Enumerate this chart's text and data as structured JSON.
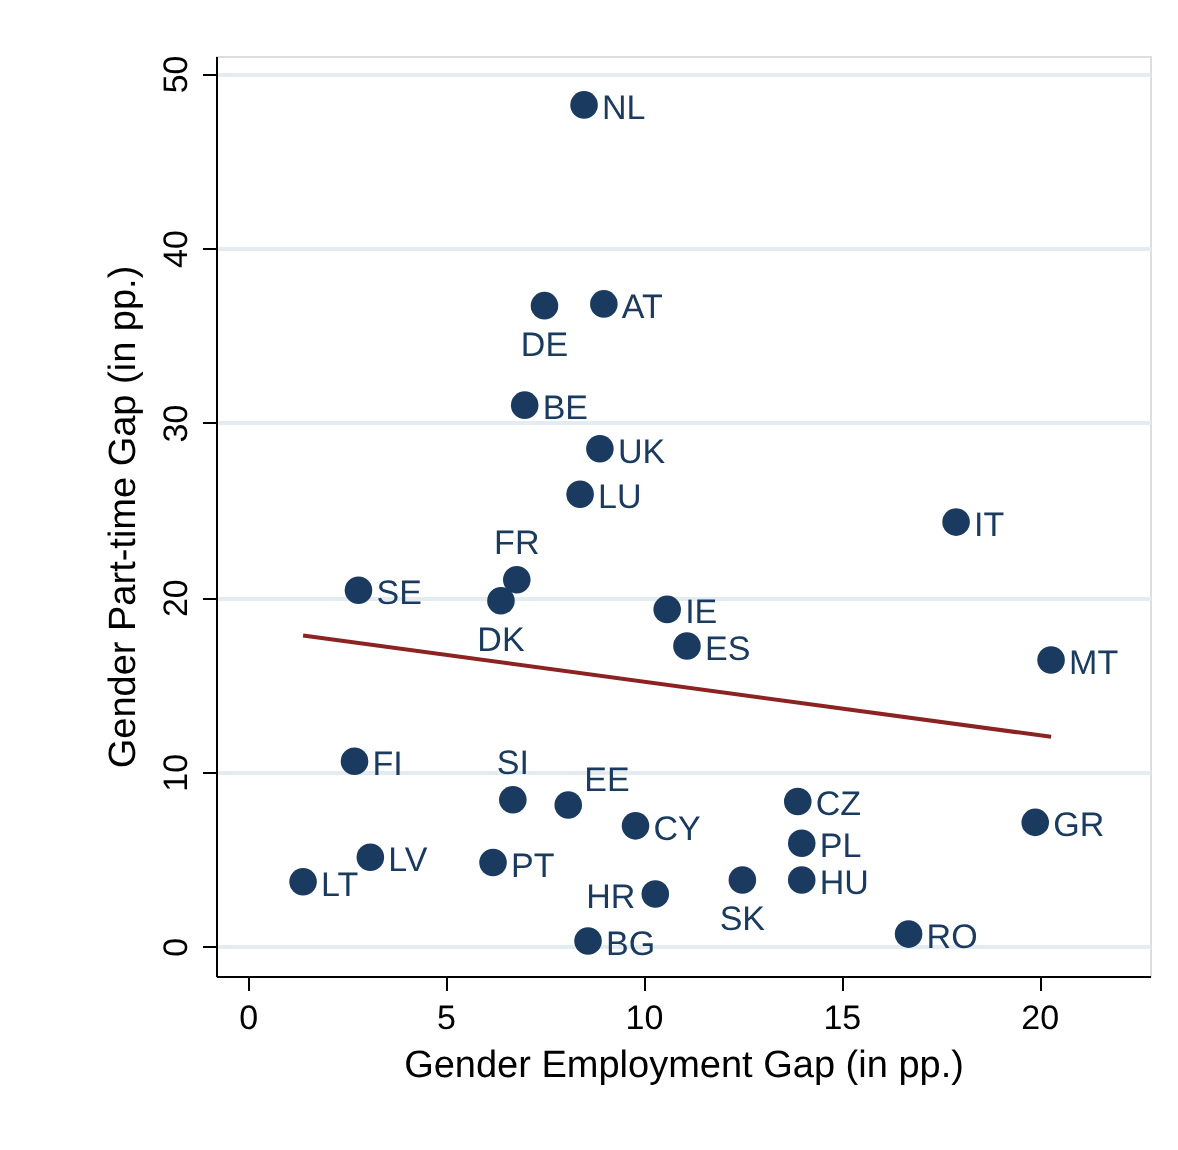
{
  "chart_data": {
    "type": "scatter",
    "xlabel": "Gender Employment Gap (in pp.)",
    "ylabel": "Gender Part-time Gap (in pp.)",
    "xlim": [
      -0.8,
      22.8
    ],
    "xticks": [
      0,
      5,
      10,
      15,
      20
    ],
    "ylim": [
      -1.7,
      51
    ],
    "yticks": [
      0,
      10,
      20,
      30,
      40,
      50
    ],
    "grid": "y",
    "series": [
      {
        "marker": "circle",
        "color": "#1a3a60",
        "x": [
          8.5,
          7.5,
          9.0,
          7.0,
          8.9,
          8.4,
          17.9,
          6.8,
          2.8,
          6.4,
          10.6,
          11.1,
          20.3,
          2.7,
          6.7,
          8.1,
          9.8,
          13.9,
          14.0,
          14.0,
          19.9,
          3.1,
          1.4,
          6.2,
          10.3,
          12.5,
          8.6,
          16.7
        ],
        "values": [
          48.2,
          36.7,
          36.8,
          31.0,
          28.5,
          25.9,
          24.3,
          21.0,
          20.4,
          19.8,
          19.3,
          17.2,
          16.4,
          10.6,
          8.4,
          8.1,
          6.9,
          8.3,
          5.9,
          3.8,
          7.1,
          5.1,
          3.7,
          4.8,
          3.0,
          3.8,
          0.3,
          0.7
        ]
      },
      {
        "type": "line",
        "color": "#8b2323",
        "x": [
          1.4,
          20.3
        ],
        "values": [
          17.8,
          12.0
        ]
      }
    ],
    "annotations": [
      {
        "text": "NL",
        "x": 8.5,
        "y": 48.2
      },
      {
        "text": "DE",
        "x": 7.5,
        "y": 36.7
      },
      {
        "text": "AT",
        "x": 9.0,
        "y": 36.8
      },
      {
        "text": "BE",
        "x": 7.0,
        "y": 31.0
      },
      {
        "text": "UK",
        "x": 8.9,
        "y": 28.5
      },
      {
        "text": "LU",
        "x": 8.4,
        "y": 25.9
      },
      {
        "text": "IT",
        "x": 17.9,
        "y": 24.3
      },
      {
        "text": "FR",
        "x": 6.8,
        "y": 21.0
      },
      {
        "text": "SE",
        "x": 2.8,
        "y": 20.4
      },
      {
        "text": "DK",
        "x": 6.4,
        "y": 19.8
      },
      {
        "text": "IE",
        "x": 10.6,
        "y": 19.3
      },
      {
        "text": "ES",
        "x": 11.1,
        "y": 17.2
      },
      {
        "text": "MT",
        "x": 20.3,
        "y": 16.4
      },
      {
        "text": "FI",
        "x": 2.7,
        "y": 10.6
      },
      {
        "text": "SI",
        "x": 6.7,
        "y": 8.4
      },
      {
        "text": "EE",
        "x": 8.1,
        "y": 8.1
      },
      {
        "text": "CY",
        "x": 9.8,
        "y": 6.9
      },
      {
        "text": "CZ",
        "x": 13.9,
        "y": 8.3
      },
      {
        "text": "PL",
        "x": 14.0,
        "y": 5.9
      },
      {
        "text": "HU",
        "x": 14.0,
        "y": 3.8
      },
      {
        "text": "GR",
        "x": 19.9,
        "y": 7.1
      },
      {
        "text": "LV",
        "x": 3.1,
        "y": 5.1
      },
      {
        "text": "LT",
        "x": 1.4,
        "y": 3.7
      },
      {
        "text": "PT",
        "x": 6.2,
        "y": 4.8
      },
      {
        "text": "HR",
        "x": 10.3,
        "y": 3.0
      },
      {
        "text": "SK",
        "x": 12.5,
        "y": 3.8
      },
      {
        "text": "BG",
        "x": 8.6,
        "y": 0.3
      },
      {
        "text": "RO",
        "x": 16.7,
        "y": 0.7
      }
    ]
  }
}
